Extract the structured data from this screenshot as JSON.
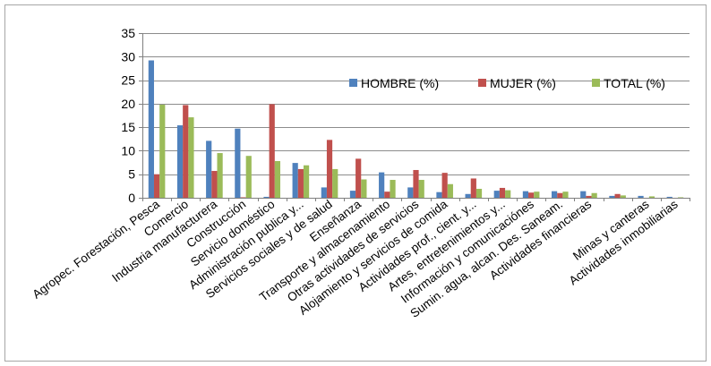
{
  "chart_data": {
    "type": "bar",
    "title": "",
    "xlabel": "",
    "ylabel": "",
    "ylim": [
      0,
      35
    ],
    "yticks": [
      0,
      5,
      10,
      15,
      20,
      25,
      30,
      35
    ],
    "grid": true,
    "legend_position": "top-right",
    "categories": [
      "Agropec. Forestación, Pesca",
      "Comercio",
      "Industria manufacturera",
      "Construcción",
      "Servicio doméstico",
      "Administración publica y...",
      "Servicios sociales y de salud",
      "Enseñanza",
      "Transporte y almacenamiento",
      "Otras actividades de servicios",
      "Alojamiento y servicios de comida",
      "Actividades prof., cient. y...",
      "Artes, entretenimientos y...",
      "Información y comunicaciónes",
      "Sumin. agua, alcan. Des. Saneam.",
      "Actividades financieras",
      "",
      "Minas y canteras",
      "Actividades inmobiliarias"
    ],
    "series": [
      {
        "name": "HOMBRE (%)",
        "color": "#4f81bd",
        "values": [
          29.2,
          15.4,
          12.1,
          14.7,
          0.2,
          7.4,
          2.2,
          1.5,
          5.4,
          2.2,
          1.2,
          0.8,
          1.5,
          1.4,
          1.4,
          1.4,
          0.4,
          0.4,
          0.2
        ]
      },
      {
        "name": "MUJER (%)",
        "color": "#c0504d",
        "values": [
          5.0,
          19.7,
          5.7,
          0.1,
          19.9,
          6.1,
          12.3,
          8.3,
          1.3,
          5.9,
          5.3,
          4.1,
          2.1,
          1.1,
          1.0,
          0.4,
          0.8,
          0.0,
          0.0
        ]
      },
      {
        "name": "TOTAL (%)",
        "color": "#9bbb59",
        "values": [
          19.8,
          17.1,
          9.5,
          8.9,
          7.8,
          6.9,
          6.1,
          3.9,
          3.8,
          3.8,
          2.9,
          1.9,
          1.6,
          1.3,
          1.3,
          1.0,
          0.5,
          0.3,
          0.1
        ]
      }
    ]
  }
}
